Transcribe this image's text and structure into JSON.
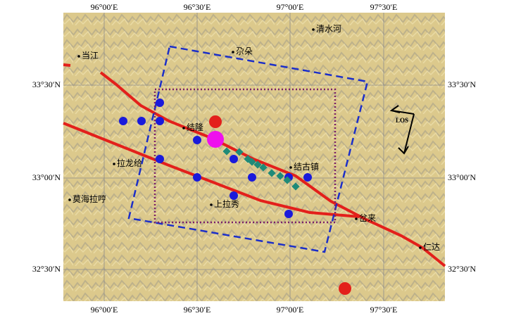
{
  "map": {
    "longitude_labels": [
      "96°00′E",
      "96°30′E",
      "97°00′E",
      "97°30′E"
    ],
    "latitude_labels": [
      "33°30′N",
      "33°00′N",
      "32°30′N"
    ],
    "places": [
      "当江",
      "清水河",
      "尕朵",
      "结隆",
      "拉龙给",
      "结古镇",
      "莫海拉哼",
      "上拉秀",
      "岔来",
      "仁达"
    ],
    "los_label": "LOS"
  }
}
